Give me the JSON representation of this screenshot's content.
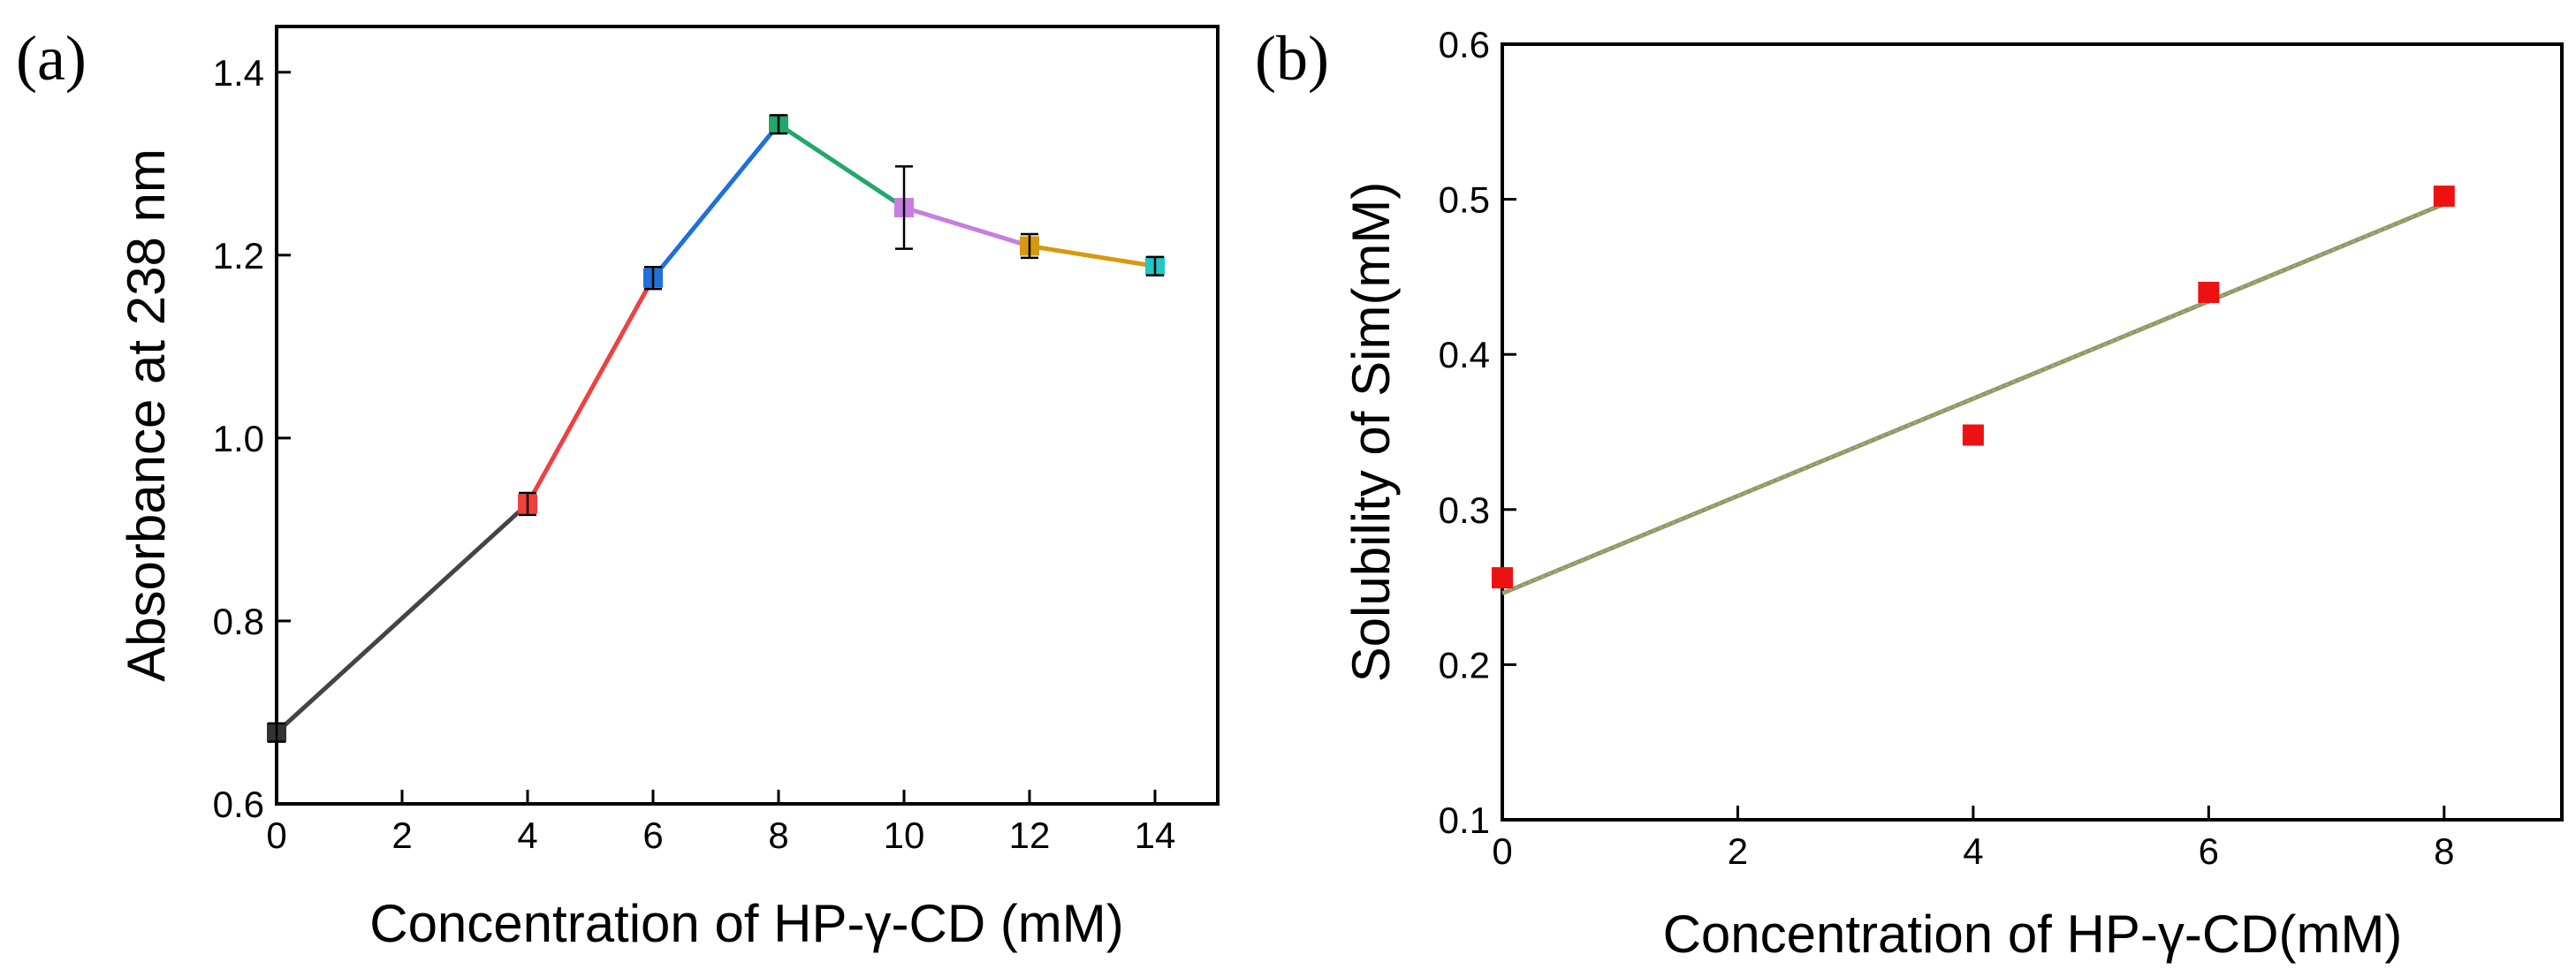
{
  "chart_data": [
    {
      "panel_label": "(a)",
      "type": "line",
      "xlabel": "Concentration of HP-γ-CD (mM)",
      "ylabel": "Absorbance at 238 nm",
      "xlim": [
        0,
        15
      ],
      "ylim": [
        0.6,
        1.45
      ],
      "xticks": [
        0,
        2,
        4,
        6,
        8,
        10,
        12,
        14
      ],
      "yticks": [
        0.6,
        0.8,
        1.0,
        1.2,
        1.4
      ],
      "xtick_labels": [
        "0",
        "2",
        "4",
        "6",
        "8",
        "10",
        "12",
        "14"
      ],
      "ytick_labels": [
        "0.6",
        "0.8",
        "1.0",
        "1.2",
        "1.4"
      ],
      "points": [
        {
          "x": 0,
          "y": 0.678,
          "err": 0.01,
          "color": "#333333"
        },
        {
          "x": 4,
          "y": 0.928,
          "err": 0.012,
          "color": "#f04040"
        },
        {
          "x": 6,
          "y": 1.175,
          "err": 0.012,
          "color": "#1f6fdc"
        },
        {
          "x": 8,
          "y": 1.343,
          "err": 0.01,
          "color": "#22a86a"
        },
        {
          "x": 10,
          "y": 1.252,
          "err": 0.045,
          "color": "#c77ee0"
        },
        {
          "x": 12,
          "y": 1.21,
          "err": 0.013,
          "color": "#d69a10"
        },
        {
          "x": 14,
          "y": 1.188,
          "err": 0.01,
          "color": "#20c8c8"
        }
      ],
      "segment_colors": [
        "#444444",
        "#f04040",
        "#1f6fdc",
        "#22a86a",
        "#c77ee0",
        "#d69a10"
      ]
    },
    {
      "panel_label": "(b)",
      "type": "scatter",
      "xlabel": "Concentration of HP-γ-CD(mM)",
      "ylabel": "Solubility of Sim(mM)",
      "xlim": [
        0,
        9
      ],
      "ylim": [
        0.1,
        0.6
      ],
      "xticks": [
        0,
        2,
        4,
        6,
        8
      ],
      "yticks": [
        0.1,
        0.2,
        0.3,
        0.4,
        0.5,
        0.6
      ],
      "xtick_labels": [
        "0",
        "2",
        "4",
        "6",
        "8"
      ],
      "ytick_labels": [
        "0.1",
        "0.2",
        "0.3",
        "0.4",
        "0.5",
        "0.6"
      ],
      "points": [
        {
          "x": 0,
          "y": 0.256
        },
        {
          "x": 4,
          "y": 0.348
        },
        {
          "x": 6,
          "y": 0.44
        },
        {
          "x": 8,
          "y": 0.502
        }
      ],
      "marker_color": "#ee1111",
      "fit_line": {
        "x": [
          0,
          8
        ],
        "y": [
          0.246,
          0.497
        ],
        "color": "#8a9a6a"
      }
    }
  ]
}
